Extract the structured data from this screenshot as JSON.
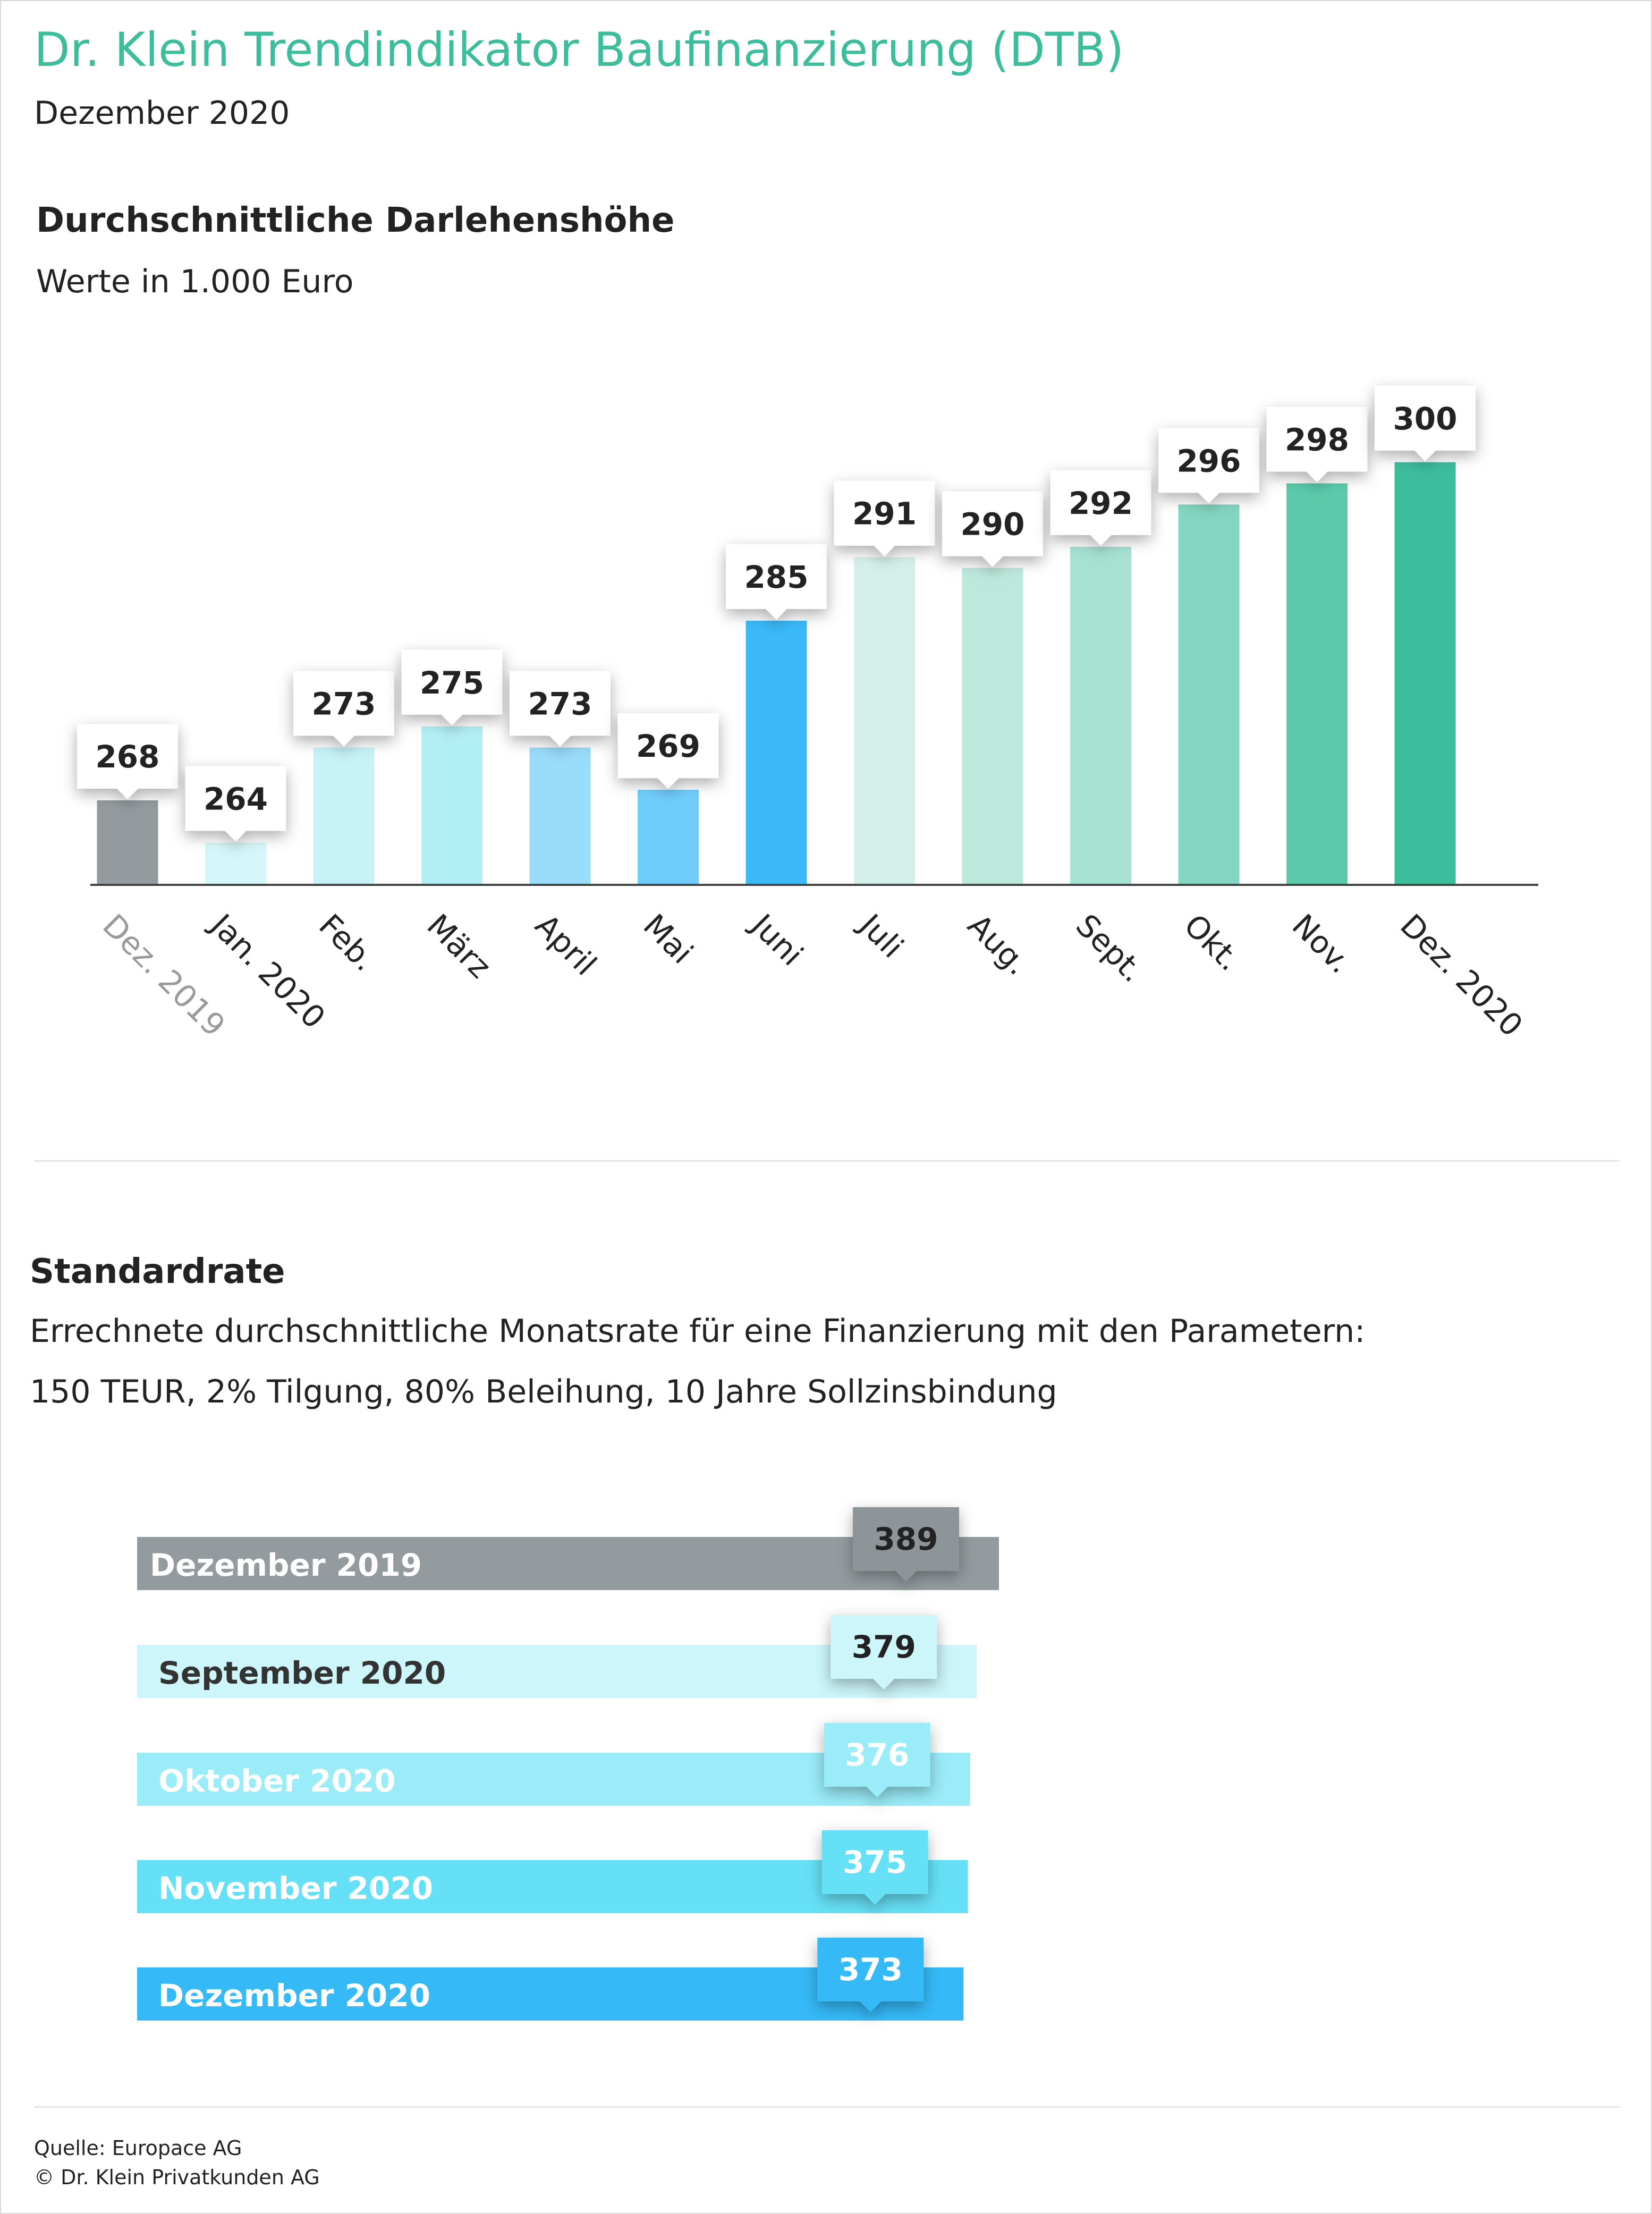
{
  "header": {
    "title": "Dr. Klein Trendindikator Baufinanzierung (DTB)",
    "date": "Dezember 2020"
  },
  "chart_data": [
    {
      "type": "bar",
      "title": "Durchschnittliche Darlehenshöhe",
      "subtitle": "Werte in 1.000 Euro",
      "categories": [
        "Dez. 2019",
        "Jan. 2020",
        "Feb.",
        "März",
        "April",
        "Mai",
        "Juni",
        "Juli",
        "Aug.",
        "Sept.",
        "Okt.",
        "Nov.",
        "Dez. 2020"
      ],
      "values": [
        268,
        264,
        273,
        275,
        273,
        269,
        285,
        291,
        290,
        292,
        296,
        298,
        300
      ],
      "colors": [
        "#949b9e",
        "#d6f7fa",
        "#c7f3f7",
        "#b2eff5",
        "#9adcfb",
        "#70cdfb",
        "#3bb9f9",
        "#d5f0ea",
        "#bde9dd",
        "#a6e1d2",
        "#83d6c1",
        "#5ccaaa",
        "#3dbd9c"
      ],
      "xlabel": "",
      "ylabel": "",
      "ylim": [
        260,
        302
      ],
      "grid": false,
      "legend": "none",
      "data_labels": true
    },
    {
      "type": "bar",
      "orientation": "horizontal",
      "title": "Standardrate",
      "subtitle_lines": [
        "Errechnete durchschnittliche Monatsrate für eine Finanzierung mit den Parametern:",
        "150 TEUR, 2% Tilgung, 80% Beleihung, 10 Jahre Sollzinsbindung"
      ],
      "categories": [
        "Dezember 2019",
        "September 2020",
        "Oktober 2020",
        "November 2020",
        "Dezember 2020"
      ],
      "values": [
        389,
        379,
        376,
        375,
        373
      ],
      "colors": [
        "#949b9e",
        "#ccf6fa",
        "#99ecf8",
        "#66e0f6",
        "#35b9f7"
      ],
      "label_colors": [
        "#ffffff",
        "#333333",
        "#ffffff",
        "#ffffff",
        "#ffffff"
      ],
      "badge_text_colors": [
        "#222222",
        "#222222",
        "#ffffff",
        "#ffffff",
        "#ffffff"
      ],
      "xlim": [
        0,
        389
      ],
      "grid": false,
      "legend": "none",
      "data_labels": true
    }
  ],
  "footer": {
    "source": "Quelle: Europace AG",
    "copyright": "© Dr. Klein Privatkunden AG"
  }
}
